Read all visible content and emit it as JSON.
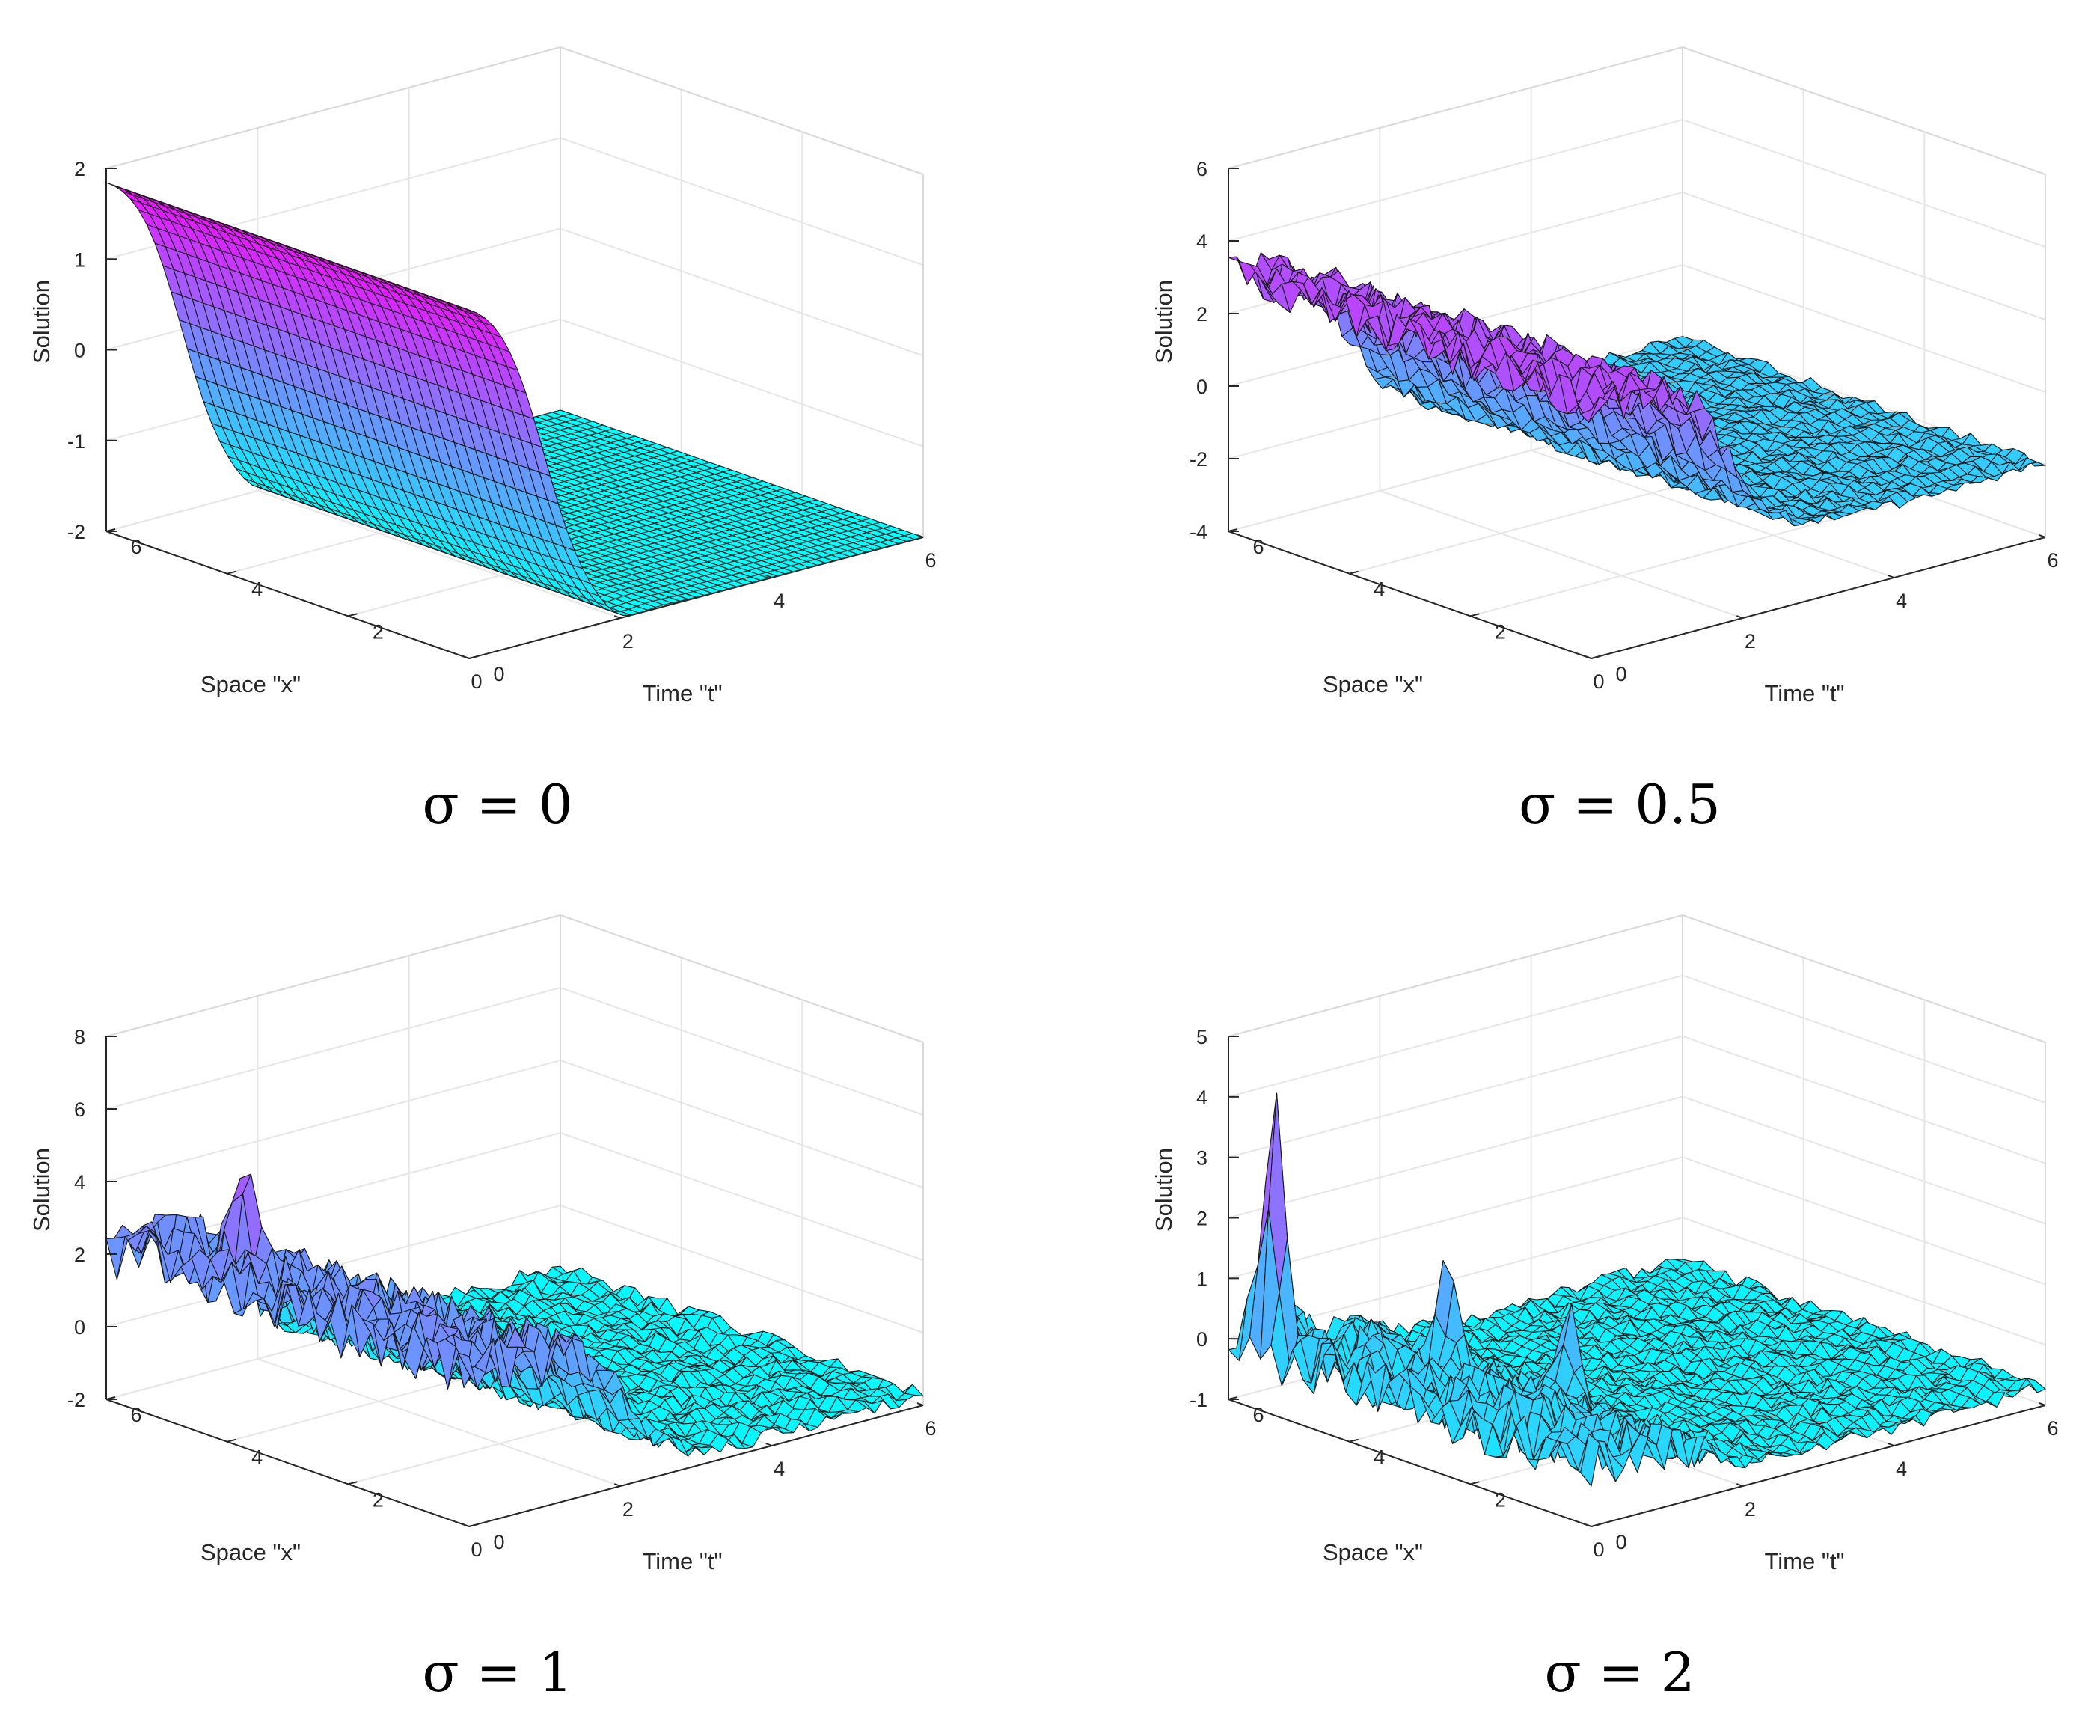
{
  "chart_data": [
    {
      "type": "surface",
      "caption": "σ = 0",
      "sigma": 0,
      "zlabel": "Solution",
      "xlabel": "Space \"x\"",
      "tlabel": "Time \"t\"",
      "xlim": [
        0,
        6
      ],
      "tlim": [
        0,
        6
      ],
      "zlim": [
        -2,
        2
      ],
      "xticks": [
        "0",
        "2",
        "4",
        "6"
      ],
      "tticks": [
        "0",
        "2",
        "4",
        "6"
      ],
      "zticks": [
        "-2",
        "-1",
        "0",
        "1",
        "2"
      ],
      "left_value": 2,
      "right_value": -2,
      "front_center": 1.0,
      "center_drift": 0.0,
      "noise": 0.0,
      "spikes": []
    },
    {
      "type": "surface",
      "caption": "σ = 0.5",
      "sigma": 0.5,
      "zlabel": "Solution",
      "xlabel": "Space \"x\"",
      "tlabel": "Time \"t\"",
      "xlim": [
        0,
        6
      ],
      "tlim": [
        0,
        6
      ],
      "zlim": [
        -4,
        6
      ],
      "xticks": [
        "0",
        "2",
        "4",
        "6"
      ],
      "tticks": [
        "0",
        "2",
        "4",
        "6"
      ],
      "zticks": [
        "-4",
        "-2",
        "0",
        "2",
        "4",
        "6"
      ],
      "left_value": 3.0,
      "right_value": -2.0,
      "front_center": 1.6,
      "center_drift": 0.25,
      "noise": 0.8,
      "spikes": []
    },
    {
      "type": "surface",
      "caption": "σ = 1",
      "sigma": 1,
      "zlabel": "Solution",
      "xlabel": "Space \"x\"",
      "tlabel": "Time \"t\"",
      "xlim": [
        0,
        6
      ],
      "tlim": [
        0,
        6
      ],
      "zlim": [
        -2,
        8
      ],
      "xticks": [
        "0",
        "2",
        "4",
        "6"
      ],
      "tticks": [
        "0",
        "2",
        "4",
        "6"
      ],
      "zticks": [
        "-2",
        "0",
        "2",
        "4",
        "6",
        "8"
      ],
      "left_value": 2.2,
      "right_value": -1.7,
      "front_center": 1.8,
      "center_drift": 0.3,
      "noise": 1.1,
      "spikes": [
        {
          "x": 4.5,
          "t": 0.6,
          "z": 5.4
        }
      ]
    },
    {
      "type": "surface",
      "caption": "σ = 2",
      "sigma": 2,
      "zlabel": "Solution",
      "xlabel": "Space \"x\"",
      "tlabel": "Time \"t\"",
      "xlim": [
        0,
        6
      ],
      "tlim": [
        0,
        6
      ],
      "zlim": [
        -1,
        5
      ],
      "xticks": [
        "0",
        "2",
        "4",
        "6"
      ],
      "tticks": [
        "0",
        "2",
        "4",
        "6"
      ],
      "zticks": [
        "-1",
        "0",
        "1",
        "2",
        "3",
        "4",
        "5"
      ],
      "left_value": 0.0,
      "right_value": -0.7,
      "front_center": 1.6,
      "center_drift": 0.0,
      "noise": 0.6,
      "spikes": [
        {
          "x": 5.5,
          "t": 0.2,
          "z": 4.3
        },
        {
          "x": 4.0,
          "t": 1.3,
          "z": 1.7
        },
        {
          "x": 2.5,
          "t": 1.7,
          "z": 1.3
        }
      ]
    }
  ]
}
